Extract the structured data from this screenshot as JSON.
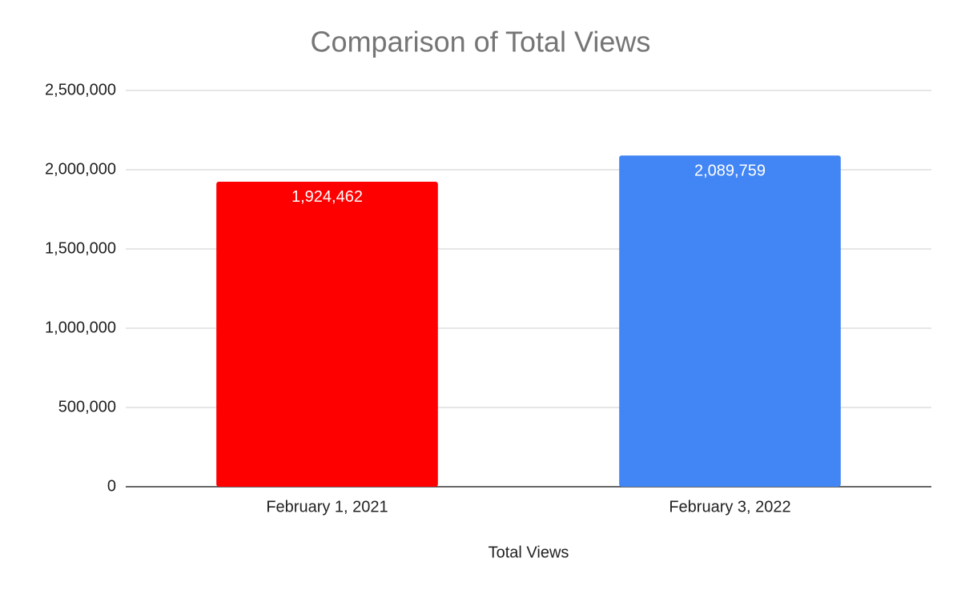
{
  "chart_data": {
    "type": "bar",
    "title": "Comparison of Total Views",
    "x_label": "Total Views",
    "categories": [
      "February 1, 2021",
      "February 3, 2022"
    ],
    "values": [
      1924462,
      2089759
    ],
    "value_labels": [
      "1,924,462",
      "2,089,759"
    ],
    "colors": [
      "#ff0000",
      "#4285f4"
    ],
    "ylim": [
      0,
      2500000
    ],
    "yticks": [
      0,
      {
        "value": 500000,
        "label": "500,000"
      },
      {
        "value": 1000000,
        "label": "1,000,000"
      },
      {
        "value": 1500000,
        "label": "1,500,000"
      },
      {
        "value": 2000000,
        "label": "2,000,000"
      },
      {
        "value": 2500000,
        "label": "2,500,000"
      }
    ],
    "grid": true
  }
}
